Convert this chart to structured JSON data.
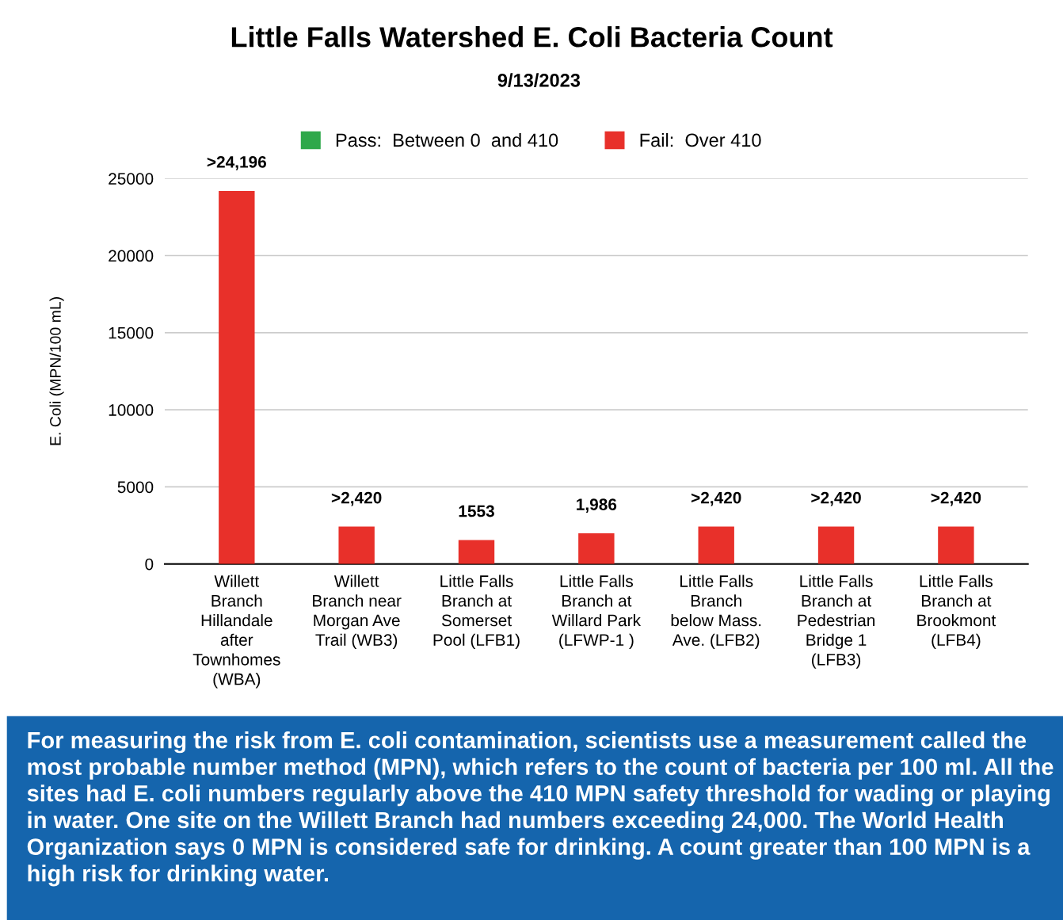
{
  "chart_data": {
    "type": "bar",
    "title": "Little Falls Watershed E. Coli Bacteria Count",
    "subtitle": "9/13/2023",
    "ylabel": "E. Coli (MPN/100 mL)",
    "categories": [
      "Willett\nBranch\nHillandale\nafter\nTownhomes\n(WBA)",
      "Willett\nBranch near\nMorgan Ave\nTrail (WB3)",
      "Little Falls\nBranch at\nSomerset\nPool (LFB1)",
      "Little Falls\nBranch at\nWillard Park\n(LFWP-1 )",
      "Little Falls\nBranch\nbelow Mass.\nAve. (LFB2)",
      "Little Falls\nBranch at\nPedestrian\nBridge 1\n(LFB3)",
      "Little Falls\nBranch at\nBrookmont\n(LFB4)"
    ],
    "series": [
      {
        "name": "Pass:  Between 0  and 410",
        "color": "#2ea84a",
        "values": [
          null,
          null,
          null,
          null,
          null,
          null,
          null
        ]
      },
      {
        "name": "Fail:  Over 410",
        "color": "#e8302a",
        "values": [
          24196,
          2420,
          1553,
          1986,
          2420,
          2420,
          2420
        ],
        "value_labels": [
          ">24,196",
          ">2,420",
          "1553",
          "1,986",
          ">2,420",
          ">2,420",
          ">2,420"
        ]
      }
    ],
    "ylim": [
      0,
      25000
    ],
    "yticks": [
      0,
      5000,
      10000,
      15000,
      20000,
      25000
    ],
    "grid": "y",
    "legend": "top",
    "annotations": [
      "For measuring the risk from E. coli contamination, scientists use a measurement called the most probable number method (MPN), which refers to the count of bacteria per 100 ml. All the sites had E. coli numbers regularly above the 410 MPN safety threshold for wading or playing in water. One site on the Willett Branch had numbers exceeding 24,000. The World Health Organization says 0 MPN is considered safe for drinking. A count greater than 100 MPN is a high risk for drinking water."
    ]
  }
}
